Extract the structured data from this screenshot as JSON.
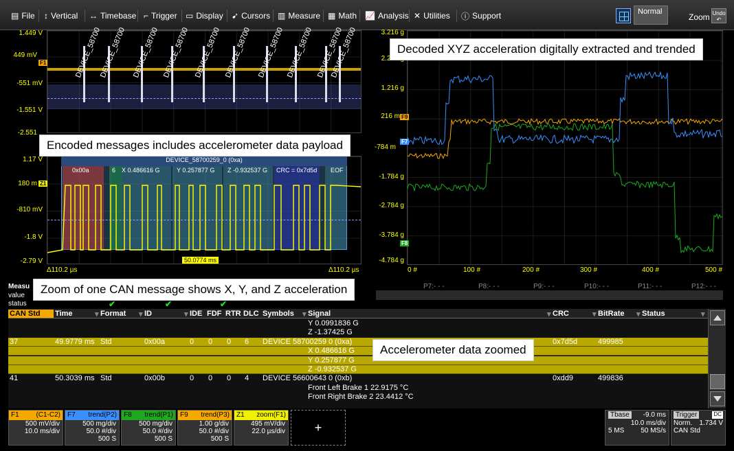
{
  "menu": {
    "file": "File",
    "vertical": "Vertical",
    "timebase": "Timebase",
    "trigger": "Trigger",
    "display": "Display",
    "cursors": "Cursors",
    "measure": "Measure",
    "math": "Math",
    "analysis": "Analysis",
    "utilities": "Utilities",
    "support": "Support",
    "mode": "Normal",
    "zoom": "Zoom",
    "undo": "Undo"
  },
  "top_left_grid": {
    "y_labels": [
      "1.449 V",
      "449 mV",
      "-551 mV",
      "-1.551 V",
      "-2.551"
    ],
    "tag": "F1",
    "decode_label": "DEVICE_58700"
  },
  "zoom_grid": {
    "y_labels": [
      "1.17 V",
      "180 m",
      "-810 mV",
      "-1.8 V",
      "-2.79 V"
    ],
    "tag": "Z1",
    "header": "DEVICE_58700259_0  (0xa)",
    "fields": [
      "0x00a",
      "6",
      "X 0.486616 G",
      "Y 0.257877 G",
      "Z -0.932537 G",
      "CRC = 0x7d5d",
      "EOF"
    ],
    "x_left": "Δ110.2 µs",
    "x_mid": "50.0774 ms",
    "x_right": "Δ110.2 µs"
  },
  "trend_grid": {
    "y_labels": [
      "3.216 g",
      "2.216 g",
      "1.216 g",
      "216 m",
      "-784 m",
      "-1.784 g",
      "-2.784 g",
      "-3.784 g",
      "-4.784 g"
    ],
    "x_labels": [
      "0 #",
      "100 #",
      "200 #",
      "300 #",
      "400 #",
      "500 #"
    ],
    "tags": [
      "F9",
      "F7",
      "F8"
    ]
  },
  "callouts": {
    "trend": "Decoded XYZ acceleration digitally extracted and trended",
    "encoded": "Encoded messages includes accelerometer data payload",
    "zoom": "Zoom of one CAN message shows X, Y, and Z acceleration",
    "data": "Accelerometer data zoomed"
  },
  "params": {
    "title": "Measu",
    "value": "value",
    "status": "status",
    "slots": [
      "P7:- - -",
      "P8:- - -",
      "P9:- - -",
      "P10:- - -",
      "P11:- - -",
      "P12:- - -"
    ]
  },
  "table": {
    "headers": [
      "CAN Std",
      "Time",
      "Format",
      "ID",
      "IDE",
      "FDF",
      "RTR",
      "DLC",
      "Symbols",
      "Signal",
      "CRC",
      "BitRate",
      "Status"
    ],
    "rows": [
      {
        "hl": false,
        "signal": "Y 0.0991836 G"
      },
      {
        "hl": false,
        "signal": "Z -1.37425 G"
      },
      {
        "hl": true,
        "idx": "37",
        "time": "49.9779 ms",
        "format": "Std",
        "id": "0x00a",
        "ide": "0",
        "fdf": "0",
        "rtr": "0",
        "dlc": "6",
        "symbols": "DEVICE  58700259  0  (0xa)",
        "signal": "",
        "crc": "0x7d5d",
        "bitrate": "499985"
      },
      {
        "hl": true,
        "signal": "X 0.486616 G"
      },
      {
        "hl": true,
        "signal": "Y 0.257877 G"
      },
      {
        "hl": true,
        "signal": "Z -0.932537 G"
      },
      {
        "hl": false,
        "idx": "41",
        "time": "50.3039 ms",
        "format": "Std",
        "id": "0x00b",
        "ide": "0",
        "fdf": "0",
        "rtr": "0",
        "dlc": "4",
        "symbols": "DEVICE  56600643  0  (0xb)",
        "signal": "",
        "crc": "0xdd9",
        "bitrate": "499836"
      },
      {
        "hl": false,
        "signal": "Front  Left  Brake  1 22.9175 °C"
      },
      {
        "hl": false,
        "signal": "Front  Right  Brake  2 23.4412 °C"
      }
    ]
  },
  "descriptors": [
    {
      "name": "F1",
      "label": "(C1-C2)",
      "color": "#f5a800",
      "v1": "500 mV/div",
      "v2": "10.0 ms/div",
      "v3": ""
    },
    {
      "name": "F7",
      "label": "trend(P2)",
      "color": "#3a8fff",
      "v1": "500 mg/div",
      "v2": "50.0 #/div",
      "v3": "500 S"
    },
    {
      "name": "F8",
      "label": "trend(P1)",
      "color": "#1fa81f",
      "v1": "500 mg/div",
      "v2": "50.0 #/div",
      "v3": "500 S"
    },
    {
      "name": "F9",
      "label": "trend(P3)",
      "color": "#f5a800",
      "v1": "1.00 g/div",
      "v2": "50.0 #/div",
      "v3": "500 S"
    },
    {
      "name": "Z1",
      "label": "zoom(F1)",
      "color": "#f0f000",
      "v1": "495 mV/div",
      "v2": "22.0 µs/div",
      "v3": ""
    }
  ],
  "add_label": "+",
  "timebase": {
    "label": "Tbase",
    "delay": "-9.0 ms",
    "div": "10.0 ms/div",
    "samples": "5 MS",
    "rate": "50 MS/s"
  },
  "trigger": {
    "label": "Trigger",
    "coupling": "DC",
    "mode": "Norm.",
    "level": "1.734 V",
    "type": "CAN Std"
  }
}
